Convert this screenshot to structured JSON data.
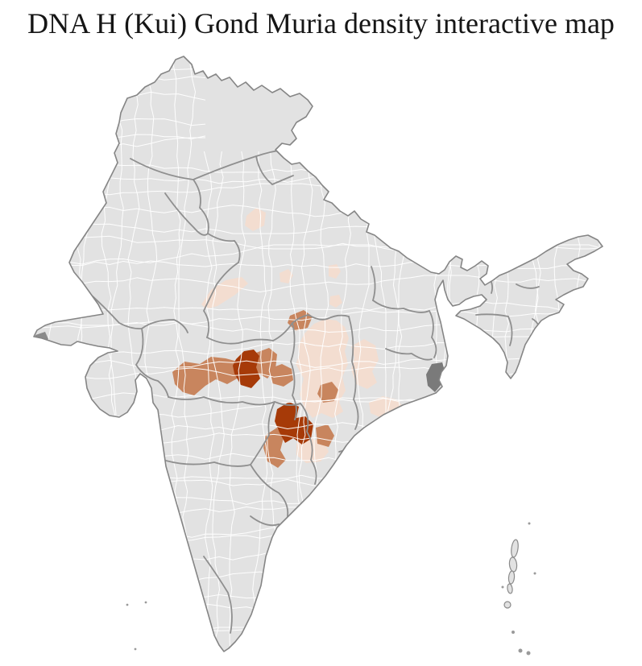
{
  "title": "DNA H (Kui) Gond Muria density interactive map",
  "map": {
    "kind": "india-district-choropleth",
    "ocean_color": "#ffffff",
    "district_fill": "#e2e2e2",
    "district_border": "#ffffff",
    "state_border": "#8f8f8f",
    "coast_border": "#858585",
    "dense_delta_fill": "#7a7a7a",
    "density_scale": [
      {
        "level": "none",
        "color": "#e2e2e2"
      },
      {
        "level": "low",
        "color": "#f3ddd0"
      },
      {
        "level": "medium",
        "color": "#c8855e"
      },
      {
        "level": "high",
        "color": "#a63a08"
      }
    ],
    "regions": [
      {
        "id": "rajasthan-border-strip",
        "level": "low"
      },
      {
        "id": "west-uttar-pradesh-district",
        "level": "low"
      },
      {
        "id": "east-uttar-pradesh-1",
        "level": "low"
      },
      {
        "id": "east-uttar-pradesh-2",
        "level": "low"
      },
      {
        "id": "east-uttar-pradesh-3",
        "level": "low"
      },
      {
        "id": "chhattisgarh-plain",
        "level": "low"
      },
      {
        "id": "west-odisha",
        "level": "low"
      },
      {
        "id": "coastal-odisha",
        "level": "low"
      },
      {
        "id": "north-telangana",
        "level": "low"
      },
      {
        "id": "west-madhya-pradesh-belt",
        "level": "medium"
      },
      {
        "id": "northeast-of-core",
        "level": "medium"
      },
      {
        "id": "east-of-core",
        "level": "medium"
      },
      {
        "id": "north-madhya-pradesh",
        "level": "medium"
      },
      {
        "id": "east-madhya-pradesh",
        "level": "medium"
      },
      {
        "id": "south-bastar-west",
        "level": "medium"
      },
      {
        "id": "malkangiri-area",
        "level": "medium"
      },
      {
        "id": "mandla-dindori-core",
        "level": "high"
      },
      {
        "id": "bastar-core",
        "level": "high"
      }
    ]
  }
}
